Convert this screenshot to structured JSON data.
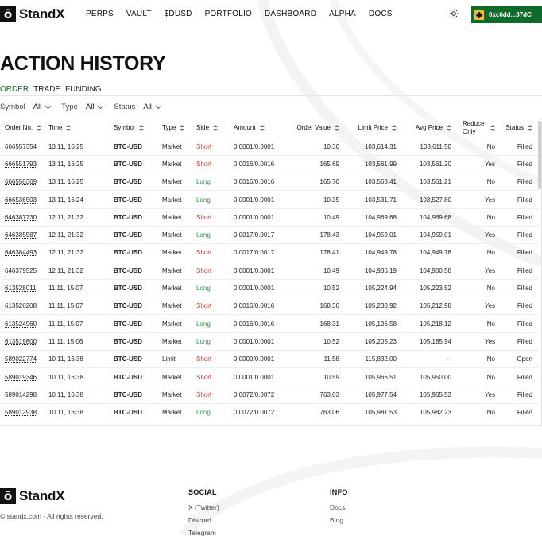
{
  "header": {
    "logo_mark": "ō",
    "logo_text": "StandX",
    "nav": [
      "PERPS",
      "VAULT",
      "$DUSD",
      "PORTFOLIO",
      "DASHBOARD",
      "ALPHA",
      "DOCS"
    ],
    "wallet_address": "0xc6dd...37dC",
    "icons": {
      "theme": "sun-icon",
      "wallet": "bnb-chain-icon"
    }
  },
  "page_title": "ACTION HISTORY",
  "tabs": [
    {
      "label": "ORDER",
      "active": true
    },
    {
      "label": "TRADE",
      "active": false
    },
    {
      "label": "FUNDING",
      "active": false
    }
  ],
  "filters": [
    {
      "label": "Symbol",
      "value": "All"
    },
    {
      "label": "Type",
      "value": "All"
    },
    {
      "label": "Status",
      "value": "All"
    }
  ],
  "table": {
    "columns": [
      "Order No.",
      "Time",
      "Symbol",
      "Type",
      "Side",
      "Amount",
      "Order Value",
      "Limit Price",
      "Avg Price",
      "Reduce Only",
      "Status"
    ],
    "rows": [
      [
        "666557354",
        "13 11, 16:25",
        "BTC-USD",
        "Market",
        "Short",
        "0.0001/0.0001",
        "10.36",
        "103,614.31",
        "103,611.50",
        "No",
        "Filled"
      ],
      [
        "666551793",
        "13 11, 16:25",
        "BTC-USD",
        "Market",
        "Short",
        "0.0016/0.0016",
        "165.69",
        "103,561.99",
        "103,561.20",
        "Yes",
        "Filled"
      ],
      [
        "666550369",
        "13 11, 16:25",
        "BTC-USD",
        "Market",
        "Long",
        "0.0016/0.0016",
        "165.70",
        "103,563.41",
        "103,561.21",
        "No",
        "Filled"
      ],
      [
        "666536503",
        "13 11, 16:24",
        "BTC-USD",
        "Market",
        "Long",
        "0.0001/0.0001",
        "10.35",
        "103,531.71",
        "103,527.80",
        "Yes",
        "Filled"
      ],
      [
        "646387730",
        "12 11, 21:32",
        "BTC-USD",
        "Market",
        "Short",
        "0.0001/0.0001",
        "10.49",
        "104,969.68",
        "104,969.68",
        "No",
        "Filled"
      ],
      [
        "646385587",
        "12 11, 21:32",
        "BTC-USD",
        "Market",
        "Long",
        "0.0017/0.0017",
        "178.43",
        "104,959.01",
        "104,959.01",
        "Yes",
        "Filled"
      ],
      [
        "646384493",
        "12 11, 21:32",
        "BTC-USD",
        "Market",
        "Short",
        "0.0017/0.0017",
        "178.41",
        "104,949.78",
        "104,949.78",
        "No",
        "Filled"
      ],
      [
        "646379525",
        "12 11, 21:32",
        "BTC-USD",
        "Market",
        "Short",
        "0.0001/0.0001",
        "10.49",
        "104,936.19",
        "104,900.58",
        "Yes",
        "Filled"
      ],
      [
        "613528011",
        "11 11, 15:07",
        "BTC-USD",
        "Market",
        "Long",
        "0.0001/0.0001",
        "10.52",
        "105,224.94",
        "105,223.52",
        "No",
        "Filled"
      ],
      [
        "613526208",
        "11 11, 15:07",
        "BTC-USD",
        "Market",
        "Short",
        "0.0016/0.0016",
        "168.36",
        "105,230.92",
        "105,212.98",
        "Yes",
        "Filled"
      ],
      [
        "613524960",
        "11 11, 15:07",
        "BTC-USD",
        "Market",
        "Long",
        "0.0016/0.0016",
        "168.31",
        "105,196.58",
        "105,218.12",
        "No",
        "Filled"
      ],
      [
        "613519800",
        "11 11, 15:06",
        "BTC-USD",
        "Market",
        "Long",
        "0.0001/0.0001",
        "10.52",
        "105,205.23",
        "105,185.94",
        "Yes",
        "Filled"
      ],
      [
        "589022774",
        "10 11, 16:38",
        "BTC-USD",
        "Limit",
        "Short",
        "0.0000/0.0001",
        "11.58",
        "115,832.00",
        "--",
        "No",
        "Open"
      ],
      [
        "589019346",
        "10 11, 16:38",
        "BTC-USD",
        "Market",
        "Short",
        "0.0001/0.0001",
        "10.59",
        "105,966.51",
        "105,950.00",
        "No",
        "Filled"
      ],
      [
        "589014298",
        "10 11, 16:38",
        "BTC-USD",
        "Market",
        "Short",
        "0.0072/0.0072",
        "763.03",
        "105,977.54",
        "105,965.53",
        "Yes",
        "Filled"
      ],
      [
        "589012938",
        "10 11, 16:38",
        "BTC-USD",
        "Market",
        "Long",
        "0.0072/0.0072",
        "763.06",
        "105,981.53",
        "105,982.23",
        "No",
        "Filled"
      ]
    ]
  },
  "footer": {
    "logo_text": "StandX",
    "copyright": "© standx.com - All rights reserved.",
    "social": {
      "title": "SOCIAL",
      "links": [
        "X (Twitter)",
        "Discord",
        "Telegram"
      ]
    },
    "info": {
      "title": "INFO",
      "links": [
        "Docs",
        "Blog"
      ]
    }
  }
}
